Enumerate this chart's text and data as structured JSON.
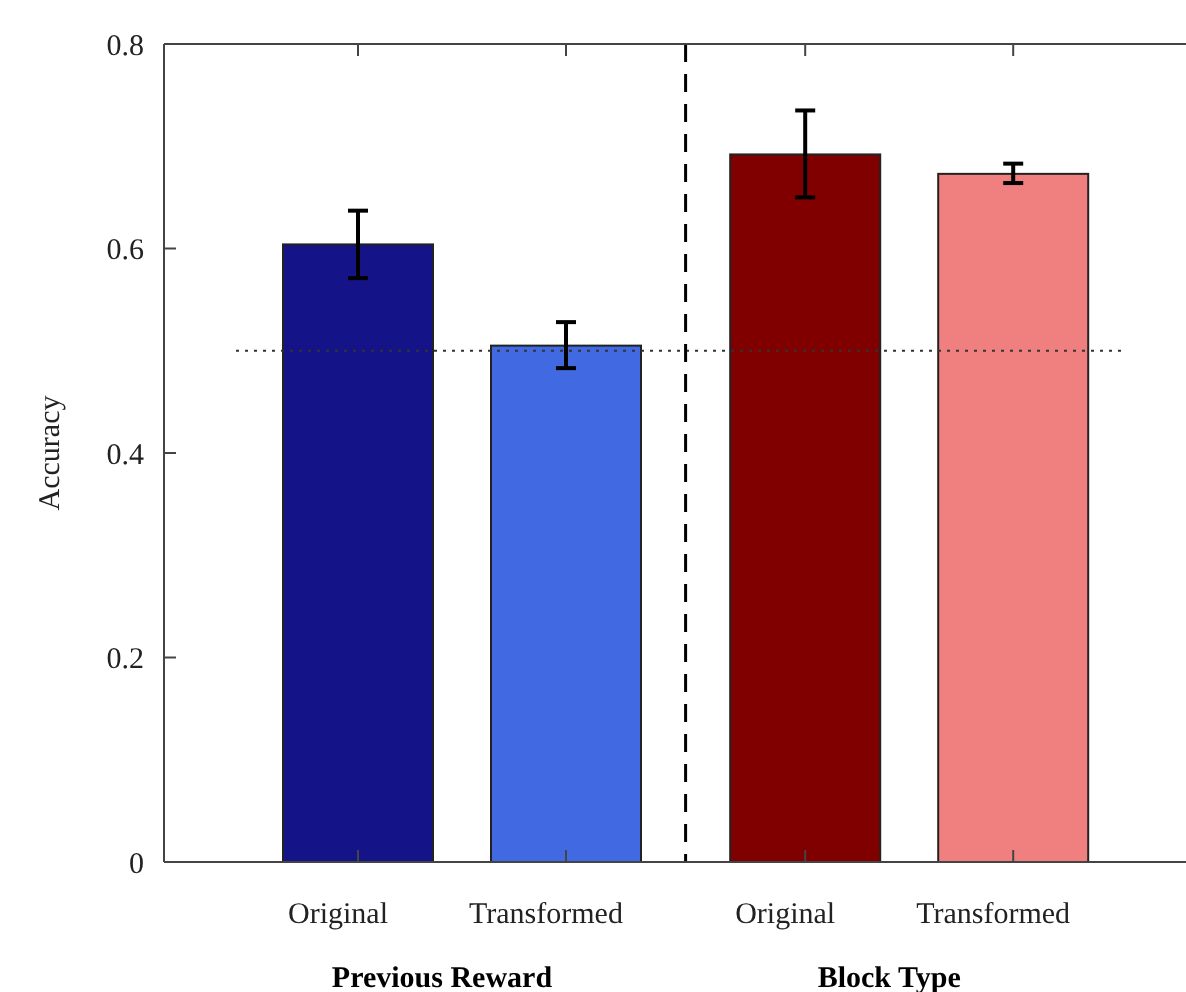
{
  "chart_data": {
    "type": "bar",
    "ylabel": "Accuracy",
    "categories": [
      "Original",
      "Transformed",
      "Original",
      "Transformed"
    ],
    "values": [
      0.604,
      0.505,
      0.692,
      0.673
    ],
    "colors": [
      "#141488",
      "#4169e1",
      "#800000",
      "#f08080"
    ],
    "errors": [
      [
        0.571,
        0.637
      ],
      [
        0.483,
        0.528
      ],
      [
        0.65,
        0.735
      ],
      [
        0.664,
        0.683
      ]
    ],
    "ylim": [
      0,
      0.8
    ],
    "yticks": [
      0,
      0.2,
      0.4,
      0.6,
      0.8
    ],
    "ref_lines": [
      {
        "axis": "y",
        "value": 0.5,
        "line_style": "dotted"
      }
    ],
    "annotations": [
      "Previous Reward",
      "Block Type"
    ]
  }
}
